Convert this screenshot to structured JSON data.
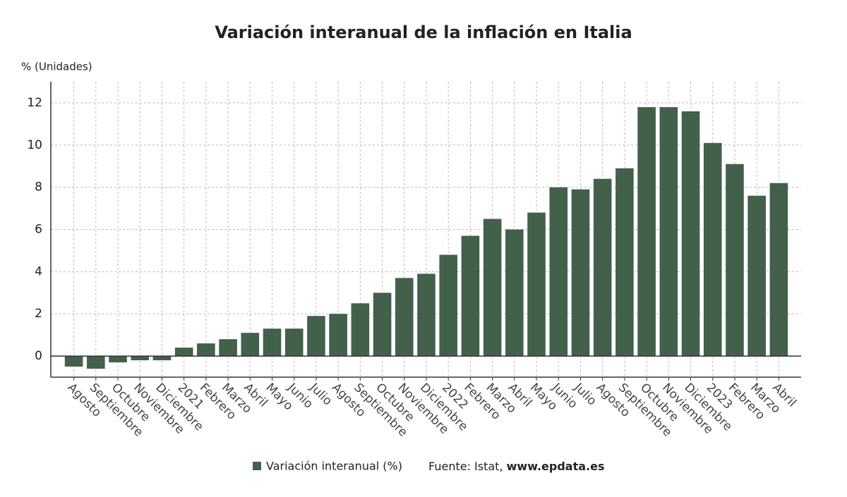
{
  "chart_data": {
    "type": "bar",
    "title": "Variación interanual de la inflación en Italia",
    "y_label": "% (Unidades)",
    "categories": [
      "Agosto",
      "Septiembre",
      "Octubre",
      "Noviembre",
      "Diciembre",
      "2021",
      "Febrero",
      "Marzo",
      "Abril",
      "Mayo",
      "Junio",
      "Julio",
      "Agosto",
      "Septiembre",
      "Octubre",
      "Noviembre",
      "Diciembre",
      "2022",
      "Febrero",
      "Marzo",
      "Abril",
      "Mayo",
      "Junio",
      "Julio",
      "Agosto",
      "Septiembre",
      "Octubre",
      "Noviembre",
      "Diciembre",
      "2023",
      "Febrero",
      "Marzo",
      "Abril"
    ],
    "series": [
      {
        "name": "Variación interanual (%)",
        "color": "#43604a",
        "values": [
          -0.5,
          -0.6,
          -0.3,
          -0.2,
          -0.2,
          0.4,
          0.6,
          0.8,
          1.1,
          1.3,
          1.3,
          1.9,
          2.0,
          2.5,
          3.0,
          3.7,
          3.9,
          4.8,
          5.7,
          6.5,
          6.0,
          6.8,
          8.0,
          7.9,
          8.4,
          8.9,
          11.8,
          11.8,
          11.6,
          10.1,
          9.1,
          7.6,
          8.2
        ]
      }
    ],
    "ylim": [
      -1,
      13
    ],
    "yticks": [
      0,
      2,
      4,
      6,
      8,
      10,
      12
    ],
    "grid": true,
    "source": "Fuente: Istat,",
    "source_link": "www.epdata.es"
  }
}
